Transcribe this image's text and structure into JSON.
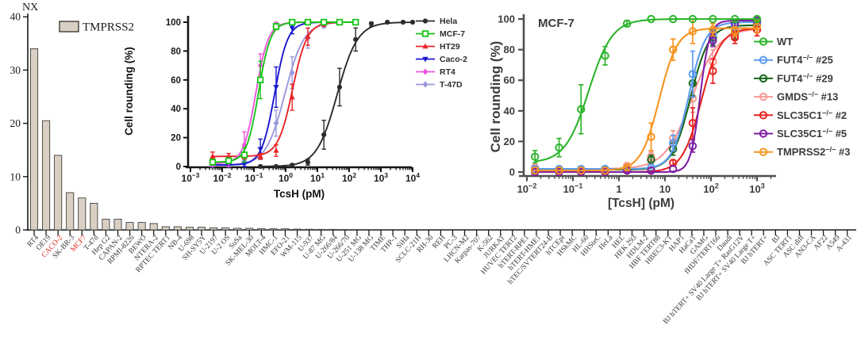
{
  "figure": {
    "background": "#ffffff",
    "description": "TMPRSS2 expression bar chart with two TcsH dose-response inset plots"
  },
  "chart_data": [
    {
      "type": "bar",
      "title": "NX",
      "legend": "TMPRSS2",
      "bar_color": "#d9d0c3",
      "bar_stroke": "#3f3f3f",
      "axis_color": "#1a1a1a",
      "highlight_color": "#e0291f",
      "highlighted": [
        "CACO-2",
        "MCF7"
      ],
      "ylim": [
        0,
        40
      ],
      "yticks": [
        0,
        10,
        20,
        30,
        40
      ],
      "categories": [
        "RT4",
        "OE19",
        "CACO-2",
        "SK-BR-3",
        "MCF7",
        "T-47d",
        "Hep G2",
        "CAPAN-2",
        "RPMI-8226",
        "BEWO",
        "NTERA-2",
        "RPTEC TERT1",
        "NB-4",
        "U-698",
        "SH-SY5Y",
        "U-2197",
        "U-2 OS",
        "SuSa",
        "SK-MEL-30",
        "MOLT-4",
        "HMC-1",
        "EFO-21",
        "WM-115",
        "U-937",
        "U-87 MG",
        "U-266/84",
        "U-266/70",
        "U-251 MG",
        "U-138 MG",
        "TIME",
        "THP-1",
        "SiHa",
        "SCLC-21H",
        "RH-30",
        "REH",
        "PC-3",
        "LHCN-M2",
        "Karpas-707",
        "K-562",
        "JURKAT",
        "HUVEC TERT2",
        "hTERT-RPE1",
        "hTERT-HME1",
        "hTEC/SVTERT24-B",
        "hTCEpi",
        "HSkMC",
        "HL-60",
        "HHSteC",
        "HeLa",
        "HEL",
        "HEK 293",
        "HDLM-2",
        "HBF TERT88",
        "HBEC3-KT",
        "HAP1",
        "HaCaT",
        "GAMG",
        "fHDF/TERT166",
        "Daudi",
        "BJ hTERT+ SV40 Large T+ RasG12V",
        "BJ hTERT+ SV40 Large T+",
        "BJ hTERT+",
        "BJ",
        "ASC TERT1",
        "ASC diff",
        "AN3-CA",
        "AF22",
        "A549",
        "A-431"
      ],
      "values": [
        34,
        20.5,
        14,
        7,
        6,
        5,
        2,
        2,
        1.4,
        1.4,
        1.2,
        0.6,
        0.6,
        0.5,
        0.5,
        0.4,
        0.4,
        0.3,
        0.3,
        0.25,
        0.2,
        0.2,
        0.15,
        0.12,
        0.1,
        0.1,
        0.08,
        0.07,
        0.06,
        0.05,
        0.05,
        0.04,
        0.04,
        0.03,
        0.03,
        0.02,
        0.02,
        0.02,
        0.01,
        0.01,
        0.01,
        0.01,
        0.01,
        0.01,
        0.01,
        0.01,
        0.01,
        0.01,
        0.01,
        0.01,
        0,
        0,
        0,
        0,
        0,
        0,
        0,
        0,
        0,
        0,
        0,
        0,
        0,
        0,
        0,
        0,
        0,
        0,
        0
      ]
    },
    {
      "type": "line",
      "xlabel": "TcsH (pM)",
      "ylabel": "Cell rounding (%)",
      "xlim_log": [
        -3,
        4
      ],
      "ylim": [
        0,
        100
      ],
      "yticks": [
        0,
        20,
        40,
        60,
        80,
        100
      ],
      "axis_color": "#161616",
      "legend_position": "right",
      "series": [
        {
          "name": "Hela",
          "color": "#2b2b2b",
          "marker": "circle",
          "ec50": 42,
          "hill": 1.35,
          "bottom": 0,
          "top": 100,
          "x": [
            0.16,
            0.5,
            1.6,
            5,
            16,
            50,
            160,
            500,
            1600,
            5000,
            10000
          ],
          "y": [
            0,
            0,
            1,
            3,
            22,
            55,
            88,
            99,
            100,
            100,
            100
          ],
          "err": [
            1,
            1,
            1,
            2,
            10,
            13,
            8,
            2,
            1,
            1,
            1
          ]
        },
        {
          "name": "MCF-7",
          "color": "#16c416",
          "marker": "square-open",
          "ec50": 0.14,
          "hill": 2.3,
          "bottom": 3,
          "top": 100,
          "x": [
            0.005,
            0.016,
            0.05,
            0.16,
            0.5,
            1.6,
            5,
            16,
            50,
            160
          ],
          "y": [
            3,
            4,
            8,
            60,
            97,
            100,
            100,
            100,
            100,
            100
          ],
          "err": [
            2,
            2,
            5,
            13,
            2,
            1,
            1,
            1,
            1,
            1
          ]
        },
        {
          "name": "HT29",
          "color": "#ea2426",
          "marker": "triangle-up",
          "ec50": 1.65,
          "hill": 1.9,
          "bottom": 7,
          "top": 100,
          "x": [
            0.005,
            0.016,
            0.05,
            0.16,
            0.5,
            1.6,
            5,
            16,
            50,
            160
          ],
          "y": [
            7,
            7,
            7,
            7,
            11,
            48,
            90,
            99,
            100,
            100
          ],
          "err": [
            3,
            2,
            2,
            2,
            4,
            9,
            6,
            2,
            1,
            1
          ]
        },
        {
          "name": "Caco-2",
          "color": "#1717cf",
          "marker": "triangle-down",
          "ec50": 0.45,
          "hill": 2.1,
          "bottom": 1,
          "top": 100,
          "x": [
            0.005,
            0.016,
            0.05,
            0.16,
            0.5,
            1.6,
            5,
            16,
            50
          ],
          "y": [
            1,
            1,
            2,
            12,
            55,
            96,
            100,
            100,
            100
          ],
          "err": [
            1,
            1,
            3,
            7,
            14,
            4,
            1,
            1,
            1
          ]
        },
        {
          "name": "RT4",
          "color": "#ee55dd",
          "marker": "diamond",
          "ec50": 0.115,
          "hill": 2.2,
          "bottom": 2,
          "top": 100,
          "x": [
            0.005,
            0.016,
            0.05,
            0.16,
            0.5,
            1.6,
            5
          ],
          "y": [
            2,
            3,
            15,
            70,
            98,
            100,
            100
          ],
          "err": [
            2,
            3,
            9,
            8,
            2,
            1,
            1
          ]
        },
        {
          "name": "T-47D",
          "color": "#9a98de",
          "marker": "diamond",
          "ec50": 0.95,
          "hill": 1.45,
          "bottom": 1,
          "top": 100,
          "x": [
            0.005,
            0.016,
            0.05,
            0.16,
            0.5,
            1.6,
            5,
            16,
            50
          ],
          "y": [
            1,
            1,
            2,
            9,
            30,
            65,
            89,
            98,
            100
          ],
          "err": [
            1,
            1,
            2,
            4,
            9,
            11,
            7,
            2,
            1
          ]
        }
      ]
    },
    {
      "type": "line",
      "title": "MCF-7",
      "xlabel": "[TcsH] (pM)",
      "ylabel": "Cell rounding (%)",
      "xlim_log": [
        -2,
        3
      ],
      "ylim": [
        0,
        100
      ],
      "yticks": [
        0,
        20,
        40,
        60,
        80,
        100
      ],
      "axis_color": "#4f4f4f",
      "legend_position": "right",
      "series": [
        {
          "name": {
            "base": "WT",
            "sup": "",
            "rest": ""
          },
          "color": "#2cb52c",
          "marker": "circle-open",
          "ec50": 0.22,
          "hill": 1.7,
          "bottom": 6,
          "top": 100,
          "x": [
            0.015,
            0.05,
            0.15,
            0.5,
            1.5,
            5,
            15,
            40,
            110,
            330,
            1000
          ],
          "y": [
            10,
            16,
            41,
            76,
            97,
            100,
            100,
            100,
            100,
            100,
            100
          ],
          "err": [
            4,
            6,
            16,
            6,
            2,
            1,
            1,
            1,
            1,
            2,
            2
          ]
        },
        {
          "name": {
            "base": "FUT4",
            "sup": "−/−",
            "rest": " #25"
          },
          "color": "#5b9bef",
          "marker": "circle-open",
          "ec50": 33,
          "hill": 2.4,
          "bottom": 2,
          "top": 98,
          "x": [
            0.015,
            0.05,
            0.15,
            0.5,
            1.5,
            5,
            15,
            40,
            110,
            330,
            1000
          ],
          "y": [
            2,
            2,
            2,
            2,
            2,
            3,
            19,
            64,
            90,
            95,
            98
          ],
          "err": [
            1,
            1,
            1,
            1,
            1,
            2,
            5,
            15,
            5,
            3,
            3
          ]
        },
        {
          "name": {
            "base": "FUT4",
            "sup": "−/−",
            "rest": " #29"
          },
          "color": "#186618",
          "marker": "circle-open",
          "ec50": 36,
          "hill": 2.2,
          "bottom": 1.5,
          "top": 96,
          "x": [
            0.015,
            0.05,
            0.15,
            0.5,
            1.5,
            5,
            15,
            40,
            110,
            330,
            1000
          ],
          "y": [
            1,
            1,
            1,
            2,
            2,
            8,
            15,
            58,
            88,
            91,
            97
          ],
          "err": [
            1,
            1,
            1,
            1,
            1,
            3,
            4,
            8,
            5,
            4,
            4
          ]
        },
        {
          "name": {
            "base": "GMDS",
            "sup": "−/−",
            "rest": " #13"
          },
          "color": "#f99795",
          "marker": "circle-open",
          "ec50": 38,
          "hill": 1.5,
          "bottom": 2,
          "top": 94,
          "x": [
            0.015,
            0.05,
            0.15,
            0.5,
            1.5,
            5,
            15,
            40,
            110,
            330,
            1000
          ],
          "y": [
            3,
            2,
            2,
            2,
            4,
            10,
            22,
            48,
            72,
            90,
            93
          ],
          "err": [
            2,
            1,
            1,
            1,
            2,
            3,
            5,
            9,
            8,
            4,
            4
          ]
        },
        {
          "name": {
            "base": "SLC35C1",
            "sup": "−/−",
            "rest": " #2"
          },
          "color": "#e8231f",
          "marker": "circle-open",
          "ec50": 62,
          "hill": 2.1,
          "bottom": 0,
          "top": 94,
          "x": [
            0.015,
            0.05,
            0.15,
            0.5,
            1.5,
            5,
            15,
            40,
            110,
            330,
            1000
          ],
          "y": [
            1,
            0,
            0,
            0,
            1,
            1,
            6,
            32,
            66,
            88,
            93
          ],
          "err": [
            1,
            1,
            1,
            1,
            1,
            1,
            2,
            10,
            8,
            4,
            4
          ]
        },
        {
          "name": {
            "base": "SLC35C1",
            "sup": "−/−",
            "rest": " #5"
          },
          "color": "#7f1fa4",
          "marker": "circle-open",
          "ec50": 58,
          "hill": 4.2,
          "bottom": 0,
          "top": 99,
          "x": [
            0.015,
            0.05,
            0.15,
            0.5,
            1.5,
            5,
            15,
            40,
            110,
            330,
            1000
          ],
          "y": [
            0,
            0,
            0,
            0,
            1,
            1,
            2,
            17,
            86,
            97,
            99
          ],
          "err": [
            1,
            1,
            1,
            1,
            1,
            1,
            1,
            4,
            4,
            2,
            2
          ]
        },
        {
          "name": {
            "base": "TMPRSS2",
            "sup": "−/−",
            "rest": " #3"
          },
          "color": "#f7941e",
          "marker": "circle-open",
          "ec50": 7.5,
          "hill": 2.2,
          "bottom": 1,
          "top": 94,
          "x": [
            0.015,
            0.05,
            0.15,
            0.5,
            1.5,
            5,
            15,
            40,
            110,
            330,
            1000
          ],
          "y": [
            1,
            1,
            1,
            1,
            3,
            23,
            80,
            92,
            93,
            92,
            95
          ],
          "err": [
            1,
            1,
            1,
            1,
            2,
            9,
            7,
            8,
            4,
            3,
            4
          ]
        }
      ]
    }
  ]
}
